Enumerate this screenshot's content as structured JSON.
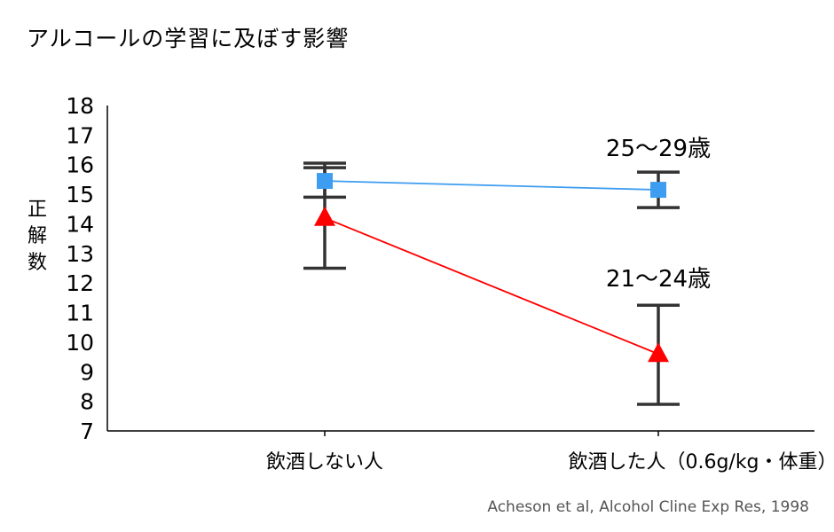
{
  "chart_data": {
    "type": "line",
    "title": "アルコールの学習に及ぼす影響",
    "ylabel": "正解数",
    "xlabel": "",
    "categories": [
      "飲酒しない人",
      "飲酒した人（0.6g/kg・体重）"
    ],
    "ylim": [
      7,
      18
    ],
    "yticks": [
      7,
      8,
      9,
      10,
      11,
      12,
      13,
      14,
      15,
      16,
      17,
      18
    ],
    "grid": false,
    "legend": "none",
    "series": [
      {
        "name": "25〜29歳",
        "color": "#3d9df0",
        "marker": "square",
        "values": [
          15.45,
          15.15
        ],
        "error_low": [
          14.9,
          14.55
        ],
        "error_high": [
          16.05,
          15.75
        ]
      },
      {
        "name": "21〜24歳",
        "color": "#ff0000",
        "marker": "triangle",
        "values": [
          14.2,
          9.6
        ],
        "error_low": [
          12.5,
          7.9
        ],
        "error_high": [
          15.9,
          11.25
        ]
      }
    ],
    "source": "Acheson et al, Alcohol Cline Exp Res, 1998"
  }
}
